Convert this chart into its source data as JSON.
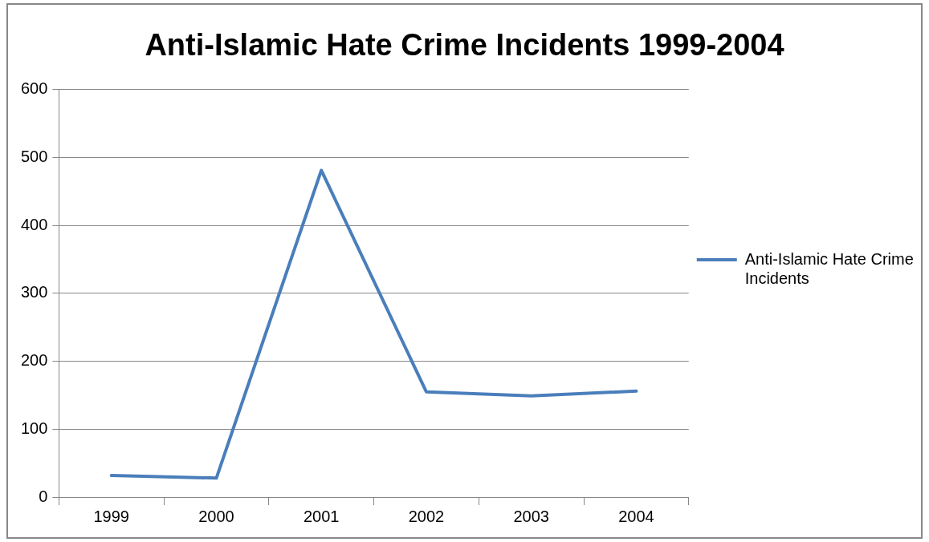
{
  "chart_data": {
    "type": "line",
    "title": "Anti-Islamic Hate Crime Incidents 1999-2004",
    "categories": [
      "1999",
      "2000",
      "2001",
      "2002",
      "2003",
      "2004"
    ],
    "series": [
      {
        "name": "Anti-Islamic Hate Crime Incidents",
        "color": "#4a7ebb",
        "values": [
          32,
          28,
          481,
          155,
          149,
          156
        ]
      }
    ],
    "ylim": [
      0,
      600
    ],
    "yticks": [
      0,
      100,
      200,
      300,
      400,
      500,
      600
    ],
    "grid": "y",
    "legend": "right",
    "marker": "none",
    "line_style": "solid"
  }
}
